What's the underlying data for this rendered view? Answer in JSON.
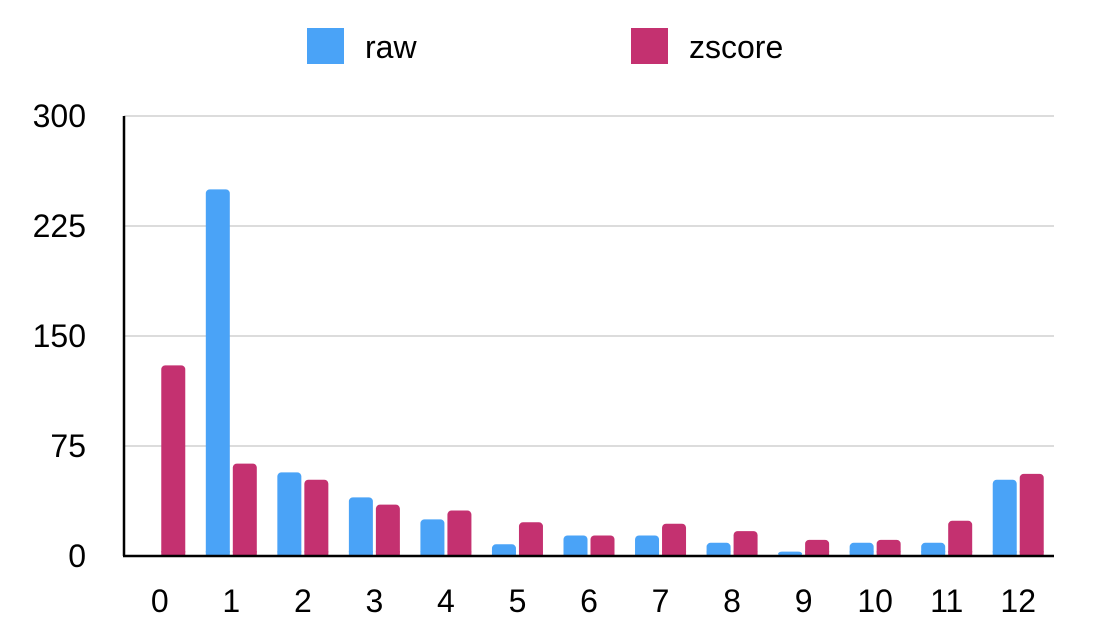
{
  "chart_data": {
    "type": "bar",
    "categories": [
      "0",
      "1",
      "2",
      "3",
      "4",
      "5",
      "6",
      "7",
      "8",
      "9",
      "10",
      "11",
      "12"
    ],
    "series": [
      {
        "name": "raw",
        "color": "#4aa3f7",
        "values": [
          0,
          250,
          57,
          40,
          25,
          8,
          14,
          14,
          9,
          3,
          9,
          9,
          52
        ]
      },
      {
        "name": "zscore",
        "color": "#c43170",
        "values": [
          130,
          63,
          52,
          35,
          31,
          23,
          14,
          22,
          17,
          11,
          11,
          24,
          56
        ]
      }
    ],
    "yticks": [
      "0",
      "75",
      "150",
      "225",
      "300"
    ],
    "ylim": [
      0,
      300
    ],
    "grid": true,
    "legend_position": "top"
  }
}
